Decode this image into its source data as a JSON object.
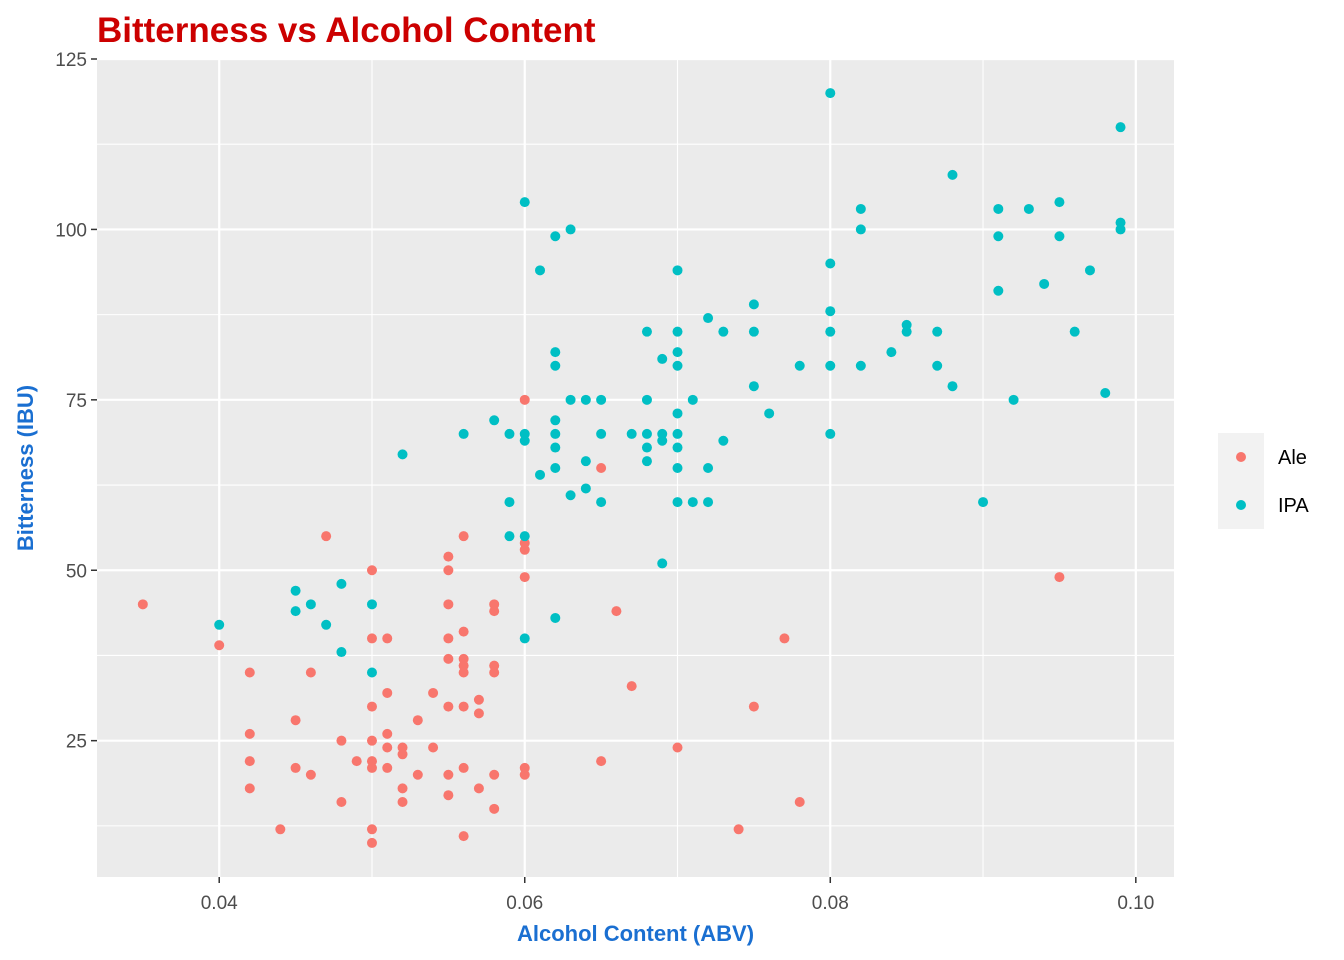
{
  "chart_data": {
    "type": "scatter",
    "title": "Bitterness vs Alcohol Content",
    "xlabel": "Alcohol Content (ABV)",
    "ylabel": "Bitterness (IBU)",
    "xlim": [
      0.032,
      0.1025
    ],
    "ylim": [
      5,
      125
    ],
    "x_ticks": [
      0.04,
      0.06,
      0.08,
      0.1
    ],
    "x_tick_labels": [
      "0.04",
      "0.06",
      "0.08",
      "0.10"
    ],
    "y_ticks": [
      25,
      50,
      75,
      100,
      125
    ],
    "y_tick_labels": [
      "25",
      "50",
      "75",
      "100",
      "125"
    ],
    "grid": true,
    "legend_position": "right",
    "colors": {
      "title": "#cc0000",
      "axis_title": "#1a6fd1",
      "panel": "#ebebeb",
      "grid": "#ffffff",
      "legend_key": "#f2f2f2"
    },
    "series": [
      {
        "name": "Ale",
        "color": "#f8766d",
        "points": [
          [
            0.035,
            45
          ],
          [
            0.04,
            39
          ],
          [
            0.042,
            35
          ],
          [
            0.042,
            26
          ],
          [
            0.042,
            22
          ],
          [
            0.042,
            18
          ],
          [
            0.044,
            12
          ],
          [
            0.045,
            28
          ],
          [
            0.045,
            21
          ],
          [
            0.046,
            35
          ],
          [
            0.046,
            20
          ],
          [
            0.047,
            55
          ],
          [
            0.048,
            25
          ],
          [
            0.048,
            16
          ],
          [
            0.049,
            22
          ],
          [
            0.05,
            50
          ],
          [
            0.05,
            40
          ],
          [
            0.05,
            30
          ],
          [
            0.05,
            25
          ],
          [
            0.05,
            22
          ],
          [
            0.05,
            21
          ],
          [
            0.05,
            12
          ],
          [
            0.05,
            10
          ],
          [
            0.051,
            40
          ],
          [
            0.051,
            32
          ],
          [
            0.051,
            26
          ],
          [
            0.051,
            24
          ],
          [
            0.051,
            21
          ],
          [
            0.052,
            24
          ],
          [
            0.052,
            23
          ],
          [
            0.052,
            18
          ],
          [
            0.052,
            16
          ],
          [
            0.053,
            28
          ],
          [
            0.053,
            20
          ],
          [
            0.054,
            32
          ],
          [
            0.054,
            24
          ],
          [
            0.055,
            52
          ],
          [
            0.055,
            50
          ],
          [
            0.055,
            45
          ],
          [
            0.055,
            40
          ],
          [
            0.055,
            37
          ],
          [
            0.055,
            30
          ],
          [
            0.055,
            20
          ],
          [
            0.055,
            17
          ],
          [
            0.056,
            55
          ],
          [
            0.056,
            41
          ],
          [
            0.056,
            37
          ],
          [
            0.056,
            36
          ],
          [
            0.056,
            35
          ],
          [
            0.056,
            30
          ],
          [
            0.056,
            21
          ],
          [
            0.056,
            11
          ],
          [
            0.057,
            31
          ],
          [
            0.057,
            29
          ],
          [
            0.057,
            18
          ],
          [
            0.058,
            45
          ],
          [
            0.058,
            44
          ],
          [
            0.058,
            36
          ],
          [
            0.058,
            35
          ],
          [
            0.058,
            20
          ],
          [
            0.058,
            15
          ],
          [
            0.06,
            75
          ],
          [
            0.06,
            54
          ],
          [
            0.06,
            53
          ],
          [
            0.06,
            49
          ],
          [
            0.06,
            21
          ],
          [
            0.06,
            20
          ],
          [
            0.065,
            65
          ],
          [
            0.065,
            22
          ],
          [
            0.066,
            44
          ],
          [
            0.067,
            33
          ],
          [
            0.07,
            24
          ],
          [
            0.074,
            12
          ],
          [
            0.075,
            30
          ],
          [
            0.077,
            40
          ],
          [
            0.078,
            16
          ],
          [
            0.095,
            49
          ]
        ]
      },
      {
        "name": "IPA",
        "color": "#00bfc4",
        "points": [
          [
            0.04,
            42
          ],
          [
            0.045,
            47
          ],
          [
            0.045,
            44
          ],
          [
            0.046,
            45
          ],
          [
            0.047,
            42
          ],
          [
            0.048,
            48
          ],
          [
            0.048,
            38
          ],
          [
            0.05,
            45
          ],
          [
            0.05,
            35
          ],
          [
            0.052,
            67
          ],
          [
            0.056,
            70
          ],
          [
            0.058,
            72
          ],
          [
            0.059,
            70
          ],
          [
            0.059,
            60
          ],
          [
            0.059,
            55
          ],
          [
            0.06,
            104
          ],
          [
            0.06,
            70
          ],
          [
            0.06,
            69
          ],
          [
            0.06,
            55
          ],
          [
            0.06,
            40
          ],
          [
            0.061,
            94
          ],
          [
            0.061,
            64
          ],
          [
            0.062,
            99
          ],
          [
            0.062,
            82
          ],
          [
            0.062,
            80
          ],
          [
            0.062,
            72
          ],
          [
            0.062,
            70
          ],
          [
            0.062,
            68
          ],
          [
            0.062,
            65
          ],
          [
            0.062,
            43
          ],
          [
            0.063,
            100
          ],
          [
            0.063,
            75
          ],
          [
            0.063,
            61
          ],
          [
            0.064,
            75
          ],
          [
            0.064,
            66
          ],
          [
            0.064,
            62
          ],
          [
            0.065,
            75
          ],
          [
            0.065,
            70
          ],
          [
            0.065,
            60
          ],
          [
            0.067,
            70
          ],
          [
            0.068,
            85
          ],
          [
            0.068,
            75
          ],
          [
            0.068,
            70
          ],
          [
            0.068,
            68
          ],
          [
            0.068,
            66
          ],
          [
            0.069,
            81
          ],
          [
            0.069,
            70
          ],
          [
            0.069,
            69
          ],
          [
            0.069,
            51
          ],
          [
            0.07,
            94
          ],
          [
            0.07,
            85
          ],
          [
            0.07,
            82
          ],
          [
            0.07,
            80
          ],
          [
            0.07,
            73
          ],
          [
            0.07,
            70
          ],
          [
            0.07,
            68
          ],
          [
            0.07,
            65
          ],
          [
            0.07,
            60
          ],
          [
            0.071,
            75
          ],
          [
            0.071,
            60
          ],
          [
            0.072,
            87
          ],
          [
            0.072,
            65
          ],
          [
            0.072,
            60
          ],
          [
            0.073,
            85
          ],
          [
            0.073,
            69
          ],
          [
            0.075,
            89
          ],
          [
            0.075,
            85
          ],
          [
            0.075,
            77
          ],
          [
            0.076,
            73
          ],
          [
            0.078,
            80
          ],
          [
            0.08,
            120
          ],
          [
            0.08,
            95
          ],
          [
            0.08,
            88
          ],
          [
            0.08,
            85
          ],
          [
            0.08,
            80
          ],
          [
            0.08,
            70
          ],
          [
            0.082,
            103
          ],
          [
            0.082,
            100
          ],
          [
            0.082,
            80
          ],
          [
            0.084,
            82
          ],
          [
            0.085,
            86
          ],
          [
            0.085,
            85
          ],
          [
            0.087,
            85
          ],
          [
            0.087,
            80
          ],
          [
            0.088,
            108
          ],
          [
            0.088,
            77
          ],
          [
            0.09,
            60
          ],
          [
            0.091,
            103
          ],
          [
            0.091,
            99
          ],
          [
            0.091,
            91
          ],
          [
            0.092,
            75
          ],
          [
            0.093,
            103
          ],
          [
            0.094,
            92
          ],
          [
            0.095,
            104
          ],
          [
            0.095,
            99
          ],
          [
            0.096,
            85
          ],
          [
            0.097,
            94
          ],
          [
            0.098,
            76
          ],
          [
            0.099,
            115
          ],
          [
            0.099,
            101
          ],
          [
            0.099,
            100
          ]
        ]
      }
    ]
  }
}
